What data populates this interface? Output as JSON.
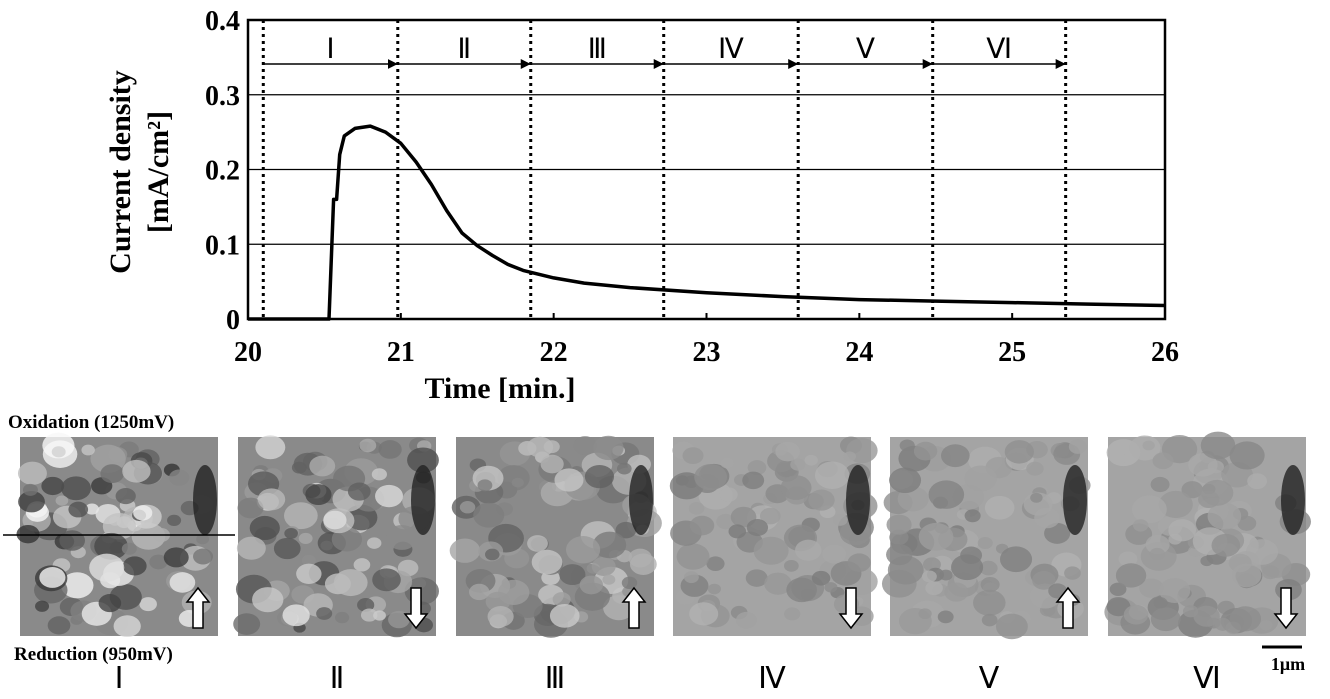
{
  "chart_data": {
    "type": "line",
    "xlabel": "Time [min.]",
    "ylabel": [
      "Current density",
      "[mA/cm²]"
    ],
    "x": [
      20.0,
      20.53,
      20.56,
      20.58,
      20.6,
      20.63,
      20.7,
      20.8,
      20.9,
      21.0,
      21.1,
      21.2,
      21.3,
      21.4,
      21.5,
      21.6,
      21.7,
      21.8,
      22.0,
      22.2,
      22.5,
      23.0,
      23.5,
      24.0,
      24.5,
      25.0,
      25.5,
      26.0
    ],
    "values": [
      0,
      0,
      0.16,
      0.16,
      0.22,
      0.245,
      0.255,
      0.258,
      0.25,
      0.235,
      0.21,
      0.18,
      0.145,
      0.115,
      0.098,
      0.085,
      0.073,
      0.065,
      0.055,
      0.048,
      0.042,
      0.035,
      0.03,
      0.026,
      0.024,
      0.022,
      0.02,
      0.018
    ],
    "color": "#000000",
    "xlim": [
      20,
      26
    ],
    "xticks": [
      20,
      21,
      22,
      23,
      24,
      25,
      26
    ],
    "ylim": [
      0,
      0.4
    ],
    "yticks": [
      0,
      0.1,
      0.2,
      0.3,
      0.4
    ],
    "grid": true,
    "phase_boundaries": [
      20.1,
      20.98,
      21.85,
      22.72,
      23.6,
      24.48,
      25.35
    ],
    "phase_labels": [
      "Ⅰ",
      "Ⅱ",
      "Ⅲ",
      "Ⅳ",
      "Ⅴ",
      "Ⅵ"
    ]
  },
  "images": {
    "oxidation_label": "Oxidation (1250mV)",
    "reduction_label": "Reduction (950mV)",
    "labels": [
      "Ⅰ",
      "Ⅱ",
      "Ⅲ",
      "Ⅳ",
      "Ⅴ",
      "Ⅵ"
    ],
    "scale_bar": "1μm"
  }
}
